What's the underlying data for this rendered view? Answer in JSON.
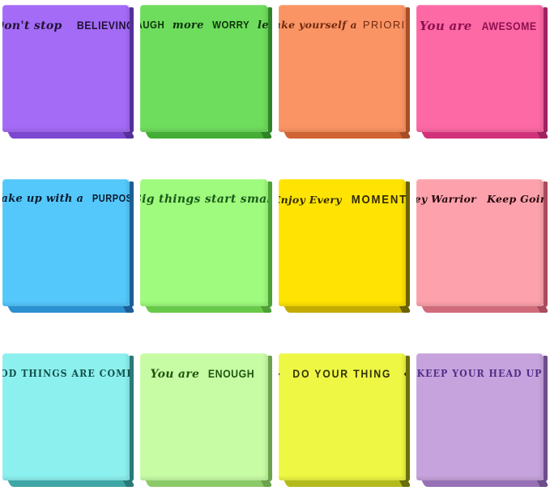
{
  "page": {
    "background": "#ffffff"
  },
  "notes": [
    {
      "name": "believing",
      "bg": "#a46bf7",
      "edge": "#7b48cf",
      "edge_dark": "#55309b",
      "ink": "#201233",
      "parts": [
        {
          "text": "Don't stop"
        },
        {
          "text": "BELIEVING"
        }
      ]
    },
    {
      "name": "laugh-more",
      "bg": "#6edc5c",
      "edge": "#44ad36",
      "edge_dark": "#2f8526",
      "ink": "#0d330d",
      "parts": [
        {
          "text": "LAUGH"
        },
        {
          "text": "more"
        },
        {
          "text": "WORRY"
        },
        {
          "text": "less"
        }
      ]
    },
    {
      "name": "priority",
      "bg": "#fb9464",
      "edge": "#d06432",
      "edge_dark": "#a84e26",
      "ink": "#6e2a12",
      "parts": [
        {
          "text": "Make yourself a"
        },
        {
          "text": "PRIORITY"
        }
      ]
    },
    {
      "name": "awesome",
      "bg": "#fd69a4",
      "edge": "#d1337a",
      "edge_dark": "#a12260",
      "ink": "#8c1150",
      "parts": [
        {
          "text": "You are"
        },
        {
          "text": "AWESOME"
        }
      ]
    },
    {
      "name": "purpose",
      "bg": "#55c8fb",
      "edge": "#2b8fd0",
      "edge_dark": "#1c5f96",
      "ink": "#0a1c30",
      "parts": [
        {
          "text": "Wake up with a"
        },
        {
          "text": "PURPOSE"
        }
      ]
    },
    {
      "name": "big-things",
      "bg": "#9ffb7d",
      "edge": "#69c94b",
      "edge_dark": "#4da136",
      "ink": "#1a5c1a",
      "parts": [
        {
          "text": "Big things start small"
        }
      ]
    },
    {
      "name": "moment",
      "bg": "#ffe403",
      "edge": "#c4ab02",
      "edge_dark": "#6b6302",
      "ink": "#332a05",
      "parts": [
        {
          "text": "Enjoy Every"
        },
        {
          "text": "MOMENT"
        }
      ]
    },
    {
      "name": "warrior",
      "bg": "#fda2ac",
      "edge": "#d06b7c",
      "edge_dark": "#a84c5e",
      "ink": "#26080f",
      "parts": [
        {
          "text": "Hey Warrior"
        },
        {
          "text": "Keep Going"
        }
      ]
    },
    {
      "name": "good-things",
      "bg": "#8cf0ee",
      "edge": "#3fa7a5",
      "edge_dark": "#2a7a7a",
      "ink": "#11514b",
      "parts": [
        {
          "text": "GOOD THINGS ARE COMING"
        }
      ]
    },
    {
      "name": "enough",
      "bg": "#c8fca4",
      "edge": "#8cc968",
      "edge_dark": "#6ba34c",
      "ink": "#1e5510",
      "parts": [
        {
          "text": "You are"
        },
        {
          "text": "ENOUGH"
        }
      ]
    },
    {
      "name": "do-your-thing",
      "bg": "#eef743",
      "edge": "#b3ba1c",
      "edge_dark": "#6b700a",
      "ink": "#32330a",
      "parts": [
        {
          "text": "↠"
        },
        {
          "text": "DO YOUR THING"
        },
        {
          "text": "↞"
        }
      ]
    },
    {
      "name": "head-up",
      "bg": "#c6a3dd",
      "edge": "#9671b5",
      "edge_dark": "#6e4d8c",
      "ink": "#4f2d85",
      "parts": [
        {
          "text": "KEEP YOUR HEAD UP"
        }
      ]
    }
  ]
}
